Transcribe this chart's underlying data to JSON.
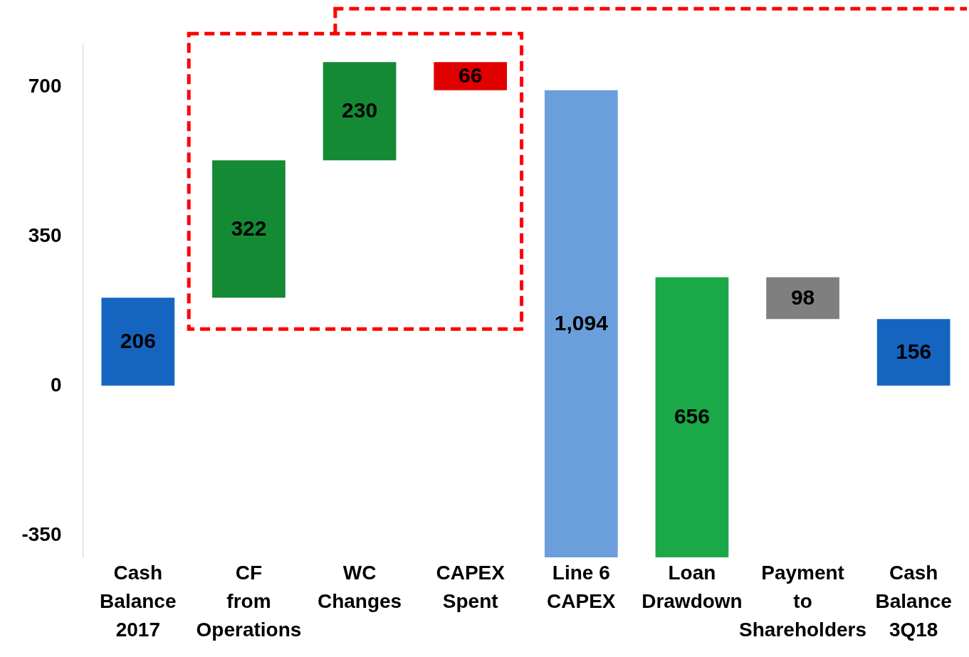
{
  "chart_data": {
    "type": "bar",
    "categories": [
      "Cash Balance 2017",
      "CF from Operations",
      "WC Changes",
      "CAPEX Spent",
      "Line 6 CAPEX",
      "Loan Drawdown",
      "Payment to Shareholders",
      "Cash Balance 3Q18"
    ],
    "values": [
      206,
      322,
      230,
      66,
      1094,
      656,
      98,
      156
    ],
    "base": [
      0,
      206,
      528,
      692,
      -402,
      -402,
      156,
      0
    ],
    "colors": [
      "#1565c0",
      "#148a34",
      "#148a34",
      "#e00000",
      "#6a9fdc",
      "#1aa848",
      "#7f7f7f",
      "#1565c0"
    ],
    "value_labels": [
      "206",
      "322",
      "230",
      "66",
      "1,094",
      "656",
      "98",
      "156"
    ],
    "ylim": [
      -402,
      800
    ],
    "yticks": [
      -350,
      0,
      350,
      700
    ]
  }
}
